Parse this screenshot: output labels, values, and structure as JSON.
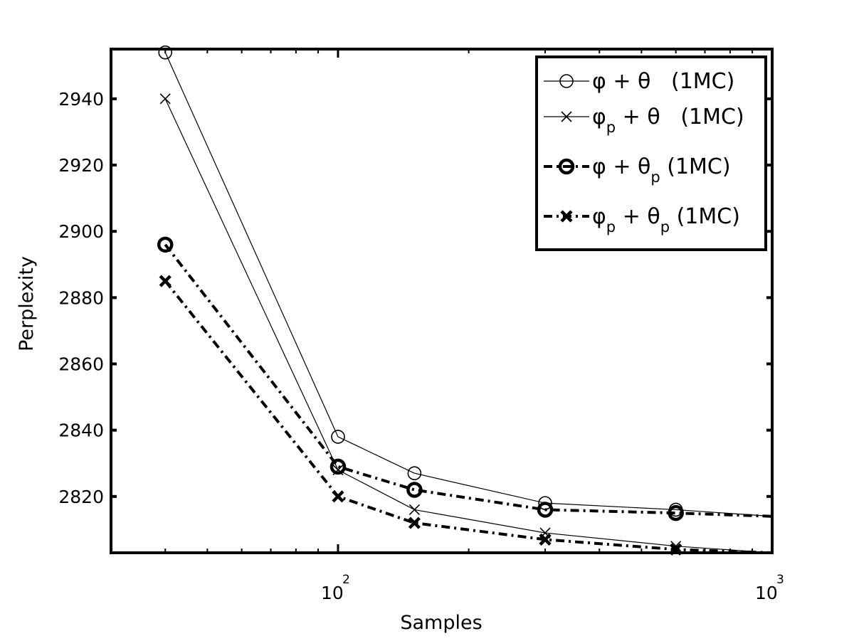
{
  "chart_data": {
    "type": "line",
    "xlabel": "Samples",
    "ylabel": "Perplexity",
    "x_scale": "log",
    "xlim": [
      30,
      1000
    ],
    "ylim": [
      2803,
      2955
    ],
    "x_ticks": [
      {
        "value": 100,
        "base": "10",
        "exp": "2"
      },
      {
        "value": 1000,
        "base": "10",
        "exp": "3"
      }
    ],
    "y_ticks": [
      2820,
      2840,
      2860,
      2880,
      2900,
      2920,
      2940
    ],
    "x": [
      40,
      100,
      150,
      300,
      600,
      1000
    ],
    "series": [
      {
        "legend": [
          "φ",
          "",
          " + θ",
          "",
          "   (1MC)"
        ],
        "marker": "circle",
        "style": "solid",
        "width": 1.2,
        "marker_width": 1.6,
        "values": [
          2954,
          2838,
          2827,
          2818,
          2816,
          2814
        ]
      },
      {
        "legend": [
          "φ",
          "p",
          " + θ",
          "",
          "   (1MC)"
        ],
        "marker": "x",
        "style": "solid",
        "width": 1.2,
        "marker_width": 1.6,
        "values": [
          2940,
          2828,
          2816,
          2809,
          2805,
          2803
        ]
      },
      {
        "legend": [
          "φ",
          "",
          " + θ",
          "p",
          " (1MC)"
        ],
        "marker": "circle",
        "style": "dashdot",
        "width": 4,
        "marker_width": 4.5,
        "values": [
          2896,
          2829,
          2822,
          2816,
          2815,
          2814
        ]
      },
      {
        "legend": [
          "φ",
          "p",
          " + θ",
          "p",
          " (1MC)"
        ],
        "marker": "x",
        "style": "dashdot",
        "width": 4,
        "marker_width": 4.5,
        "values": [
          2885,
          2820,
          2812,
          2807,
          2804,
          2803
        ]
      }
    ],
    "grid": false,
    "legend_position": "top-right"
  }
}
